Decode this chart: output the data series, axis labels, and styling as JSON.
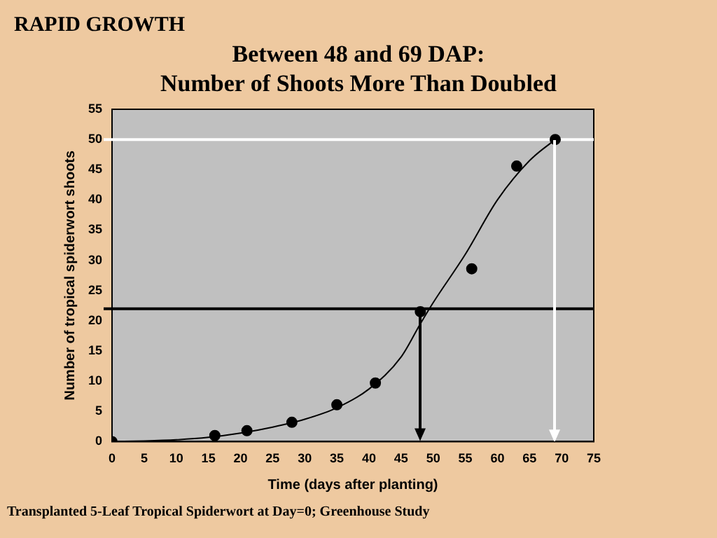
{
  "chart_data": {
    "type": "scatter",
    "title": "Between 48 and 69 DAP:\nNumber of Shoots More Than Doubled",
    "xlabel": "Time (days after planting)",
    "ylabel": "Number of tropical spiderwort shoots",
    "annotations": [
      "RAPID GROWTH",
      "Transplanted 5-Leaf Tropical Spiderwort at Day=0; Greenhouse Study"
    ],
    "xlim": [
      0,
      75
    ],
    "xticks": [
      0,
      5,
      10,
      15,
      20,
      25,
      30,
      35,
      40,
      45,
      50,
      55,
      60,
      65,
      70,
      75
    ],
    "ylim": [
      0,
      55
    ],
    "yticks": [
      0,
      5,
      10,
      15,
      20,
      25,
      30,
      35,
      40,
      45,
      50,
      55
    ],
    "grid": false,
    "legend": false,
    "series": [
      {
        "marker": "circle",
        "color": "#000000",
        "x": [
          0,
          16,
          21,
          28,
          35,
          41,
          48,
          56,
          63,
          69
        ],
        "values": [
          0,
          1,
          1.8,
          3.2,
          6.1,
          9.7,
          21.5,
          28.6,
          45.6,
          50
        ]
      },
      {
        "type": "line",
        "marker": "none",
        "color": "#000000",
        "x": [
          0,
          5,
          10,
          15,
          20,
          25,
          30,
          35,
          40,
          45,
          48,
          50,
          55,
          60,
          65,
          69
        ],
        "values": [
          0,
          0.1,
          0.3,
          0.7,
          1.4,
          2.4,
          3.7,
          5.6,
          8.7,
          14,
          19.5,
          23,
          31,
          40,
          46.5,
          50
        ]
      }
    ],
    "ref_lines": [
      {
        "axis": "y",
        "value": 22,
        "color": "#000000"
      },
      {
        "axis": "y",
        "value": 50,
        "color": "#ffffff"
      }
    ]
  }
}
